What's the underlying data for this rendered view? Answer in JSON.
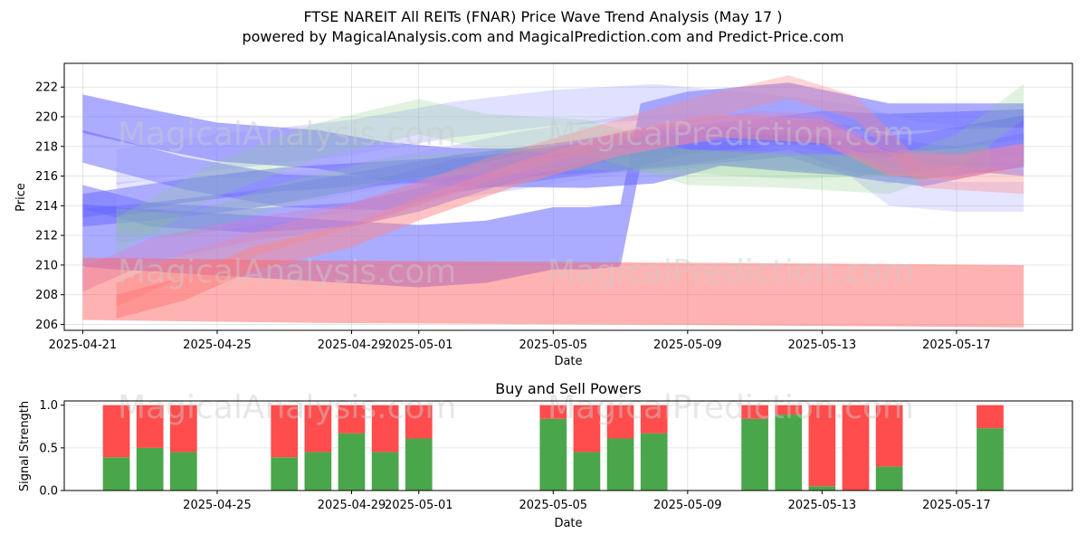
{
  "title": "FTSE NAREIT All REITs (FNAR) Price Wave Trend Analysis (May 17 )",
  "subtitle": "powered by MagicalAnalysis.com and MagicalPrediction.com and Predict-Price.com",
  "watermarks": [
    "MagicalAnalysis.com",
    "MagicalPrediction.com"
  ],
  "colors": {
    "blue_band": "#6666ff",
    "red_band": "#ff6666",
    "green_band": "#66bb66",
    "buy": "#4aa64a",
    "sell": "#ff4c4c"
  },
  "chart_data": [
    {
      "type": "line",
      "subtype": "wave-bands",
      "xlabel": "Date",
      "ylabel": "Price",
      "xlim": [
        "2025-04-21",
        "2025-05-20"
      ],
      "ylim": [
        205.6,
        223.6
      ],
      "x_ticks": [
        "2025-04-21",
        "2025-04-25",
        "2025-04-29",
        "2025-05-01",
        "2025-05-05",
        "2025-05-09",
        "2025-05-13",
        "2025-05-17"
      ],
      "y_ticks": [
        206,
        208,
        210,
        212,
        214,
        216,
        218,
        220,
        222
      ],
      "grid": true,
      "series": [
        {
          "color": "#6666ff",
          "opacity": 0.55,
          "width": 2.6,
          "points": [
            [
              "2025-04-21",
              220.2
            ],
            [
              "2025-04-23",
              219.2
            ],
            [
              "2025-04-25",
              218.3
            ],
            [
              "2025-04-28",
              217.8
            ],
            [
              "2025-04-30",
              217.0
            ],
            [
              "2025-05-02",
              216.6
            ],
            [
              "2025-05-06",
              216.5
            ],
            [
              "2025-05-08",
              216.8
            ],
            [
              "2025-05-10",
              218.0
            ],
            [
              "2025-05-12",
              217.6
            ],
            [
              "2025-05-14",
              217.3
            ],
            [
              "2025-05-16",
              217.6
            ],
            [
              "2025-05-19",
              218.8
            ]
          ]
        },
        {
          "color": "#6666ff",
          "opacity": 0.55,
          "width": 4.2,
          "points": [
            [
              "2025-04-21",
              212.0
            ],
            [
              "2025-04-22",
              211.8
            ],
            [
              "2025-04-25",
              211.4
            ],
            [
              "2025-04-28",
              211.0
            ],
            [
              "2025-05-01",
              210.6
            ],
            [
              "2025-05-03",
              210.9
            ],
            [
              "2025-05-05",
              211.8
            ],
            [
              "2025-05-06",
              211.8
            ],
            [
              "2025-05-07",
              212.0
            ],
            [
              "2025-05-07.6",
              218.8
            ],
            [
              "2025-05-09",
              219.6
            ],
            [
              "2025-05-12",
              220.2
            ],
            [
              "2025-05-15",
              218.8
            ],
            [
              "2025-05-17",
              218.8
            ],
            [
              "2025-05-19",
              218.8
            ]
          ]
        },
        {
          "color": "#6666ff",
          "opacity": 0.5,
          "width": 2.2,
          "points": [
            [
              "2025-04-21",
              218.0
            ],
            [
              "2025-04-24",
              216.2
            ],
            [
              "2025-04-27",
              215.0
            ],
            [
              "2025-04-30",
              214.8
            ],
            [
              "2025-05-02",
              216.0
            ],
            [
              "2025-05-06",
              217.2
            ],
            [
              "2025-05-09",
              217.8
            ],
            [
              "2025-05-12",
              218.4
            ],
            [
              "2025-05-14",
              217.0
            ],
            [
              "2025-05-16",
              216.4
            ],
            [
              "2025-05-19",
              217.8
            ]
          ]
        },
        {
          "color": "#6666ff",
          "opacity": 0.5,
          "width": 1.6,
          "points": [
            [
              "2025-04-21",
              214.0
            ],
            [
              "2025-04-24",
              215.0
            ],
            [
              "2025-04-27",
              215.8
            ],
            [
              "2025-04-30",
              216.2
            ],
            [
              "2025-05-03",
              216.6
            ],
            [
              "2025-05-06",
              217.0
            ],
            [
              "2025-05-09",
              217.6
            ],
            [
              "2025-05-12",
              218.6
            ],
            [
              "2025-05-14",
              217.0
            ],
            [
              "2025-05-16",
              216.6
            ],
            [
              "2025-05-19",
              217.4
            ]
          ]
        },
        {
          "color": "#6666ff",
          "opacity": 0.5,
          "width": 1.2,
          "points": [
            [
              "2025-04-21",
              213.2
            ],
            [
              "2025-04-23",
              213.6
            ],
            [
              "2025-04-26",
              214.4
            ],
            [
              "2025-04-29",
              215.6
            ],
            [
              "2025-05-02",
              216.8
            ],
            [
              "2025-05-05",
              217.6
            ],
            [
              "2025-05-08",
              218.6
            ],
            [
              "2025-05-11",
              219.2
            ],
            [
              "2025-05-13",
              219.8
            ],
            [
              "2025-05-15",
              219.6
            ],
            [
              "2025-05-19",
              219.9
            ]
          ]
        },
        {
          "color": "#6666ff",
          "opacity": 0.5,
          "width": 1.6,
          "points": [
            [
              "2025-04-21",
              214.6
            ],
            [
              "2025-04-23",
              213.4
            ],
            [
              "2025-04-26",
              213.0
            ],
            [
              "2025-04-29",
              213.4
            ],
            [
              "2025-05-01",
              214.4
            ],
            [
              "2025-05-04",
              216.6
            ],
            [
              "2025-05-07",
              218.0
            ],
            [
              "2025-05-10",
              218.6
            ],
            [
              "2025-05-13",
              219.0
            ],
            [
              "2025-05-16",
              217.4
            ],
            [
              "2025-05-19",
              216.8
            ]
          ]
        },
        {
          "color": "#9999ff",
          "opacity": 0.3,
          "width": 2.4,
          "points": [
            [
              "2025-04-22",
              216.6
            ],
            [
              "2025-04-25",
              217.6
            ],
            [
              "2025-04-29",
              218.6
            ],
            [
              "2025-05-02",
              219.8
            ],
            [
              "2025-05-05",
              220.6
            ],
            [
              "2025-05-08",
              221.0
            ],
            [
              "2025-05-11",
              220.4
            ],
            [
              "2025-05-14",
              219.6
            ],
            [
              "2025-05-16",
              218.4
            ],
            [
              "2025-05-19",
              218.0
            ]
          ]
        },
        {
          "color": "#9999ff",
          "opacity": 0.25,
          "width": 2.0,
          "points": [
            [
              "2025-04-22",
              214.6
            ],
            [
              "2025-04-25",
              215.0
            ],
            [
              "2025-04-28",
              215.4
            ],
            [
              "2025-05-01",
              216.6
            ],
            [
              "2025-05-04",
              218.0
            ],
            [
              "2025-05-07",
              219.0
            ],
            [
              "2025-05-10",
              219.4
            ],
            [
              "2025-05-13",
              218.4
            ],
            [
              "2025-05-15",
              215.0
            ],
            [
              "2025-05-17",
              214.6
            ],
            [
              "2025-05-19",
              214.6
            ]
          ]
        },
        {
          "color": "#9999ff",
          "opacity": 0.3,
          "width": 1.8,
          "points": [
            [
              "2025-04-22",
              212.4
            ],
            [
              "2025-04-25",
              213.2
            ],
            [
              "2025-04-28",
              214.2
            ],
            [
              "2025-05-01",
              215.0
            ],
            [
              "2025-05-04",
              216.0
            ],
            [
              "2025-05-07",
              217.0
            ],
            [
              "2025-05-10",
              217.6
            ],
            [
              "2025-05-13",
              217.2
            ],
            [
              "2025-05-15",
              216.4
            ],
            [
              "2025-05-19",
              217.6
            ]
          ]
        },
        {
          "color": "#88cc88",
          "opacity": 0.25,
          "width": 2.4,
          "points": [
            [
              "2025-04-22",
              212.0
            ],
            [
              "2025-04-25",
              215.8
            ],
            [
              "2025-04-28",
              218.4
            ],
            [
              "2025-05-01",
              220.0
            ],
            [
              "2025-05-03",
              219.0
            ],
            [
              "2025-05-06",
              218.6
            ],
            [
              "2025-05-09",
              216.6
            ],
            [
              "2025-05-12",
              216.4
            ],
            [
              "2025-05-15",
              216.0
            ],
            [
              "2025-05-17",
              217.6
            ],
            [
              "2025-05-19",
              221.0
            ]
          ]
        },
        {
          "color": "#88cc88",
          "opacity": 0.25,
          "width": 1.6,
          "points": [
            [
              "2025-04-22",
              213.0
            ],
            [
              "2025-04-24",
              212.6
            ],
            [
              "2025-04-27",
              214.8
            ],
            [
              "2025-04-30",
              216.4
            ],
            [
              "2025-05-03",
              217.0
            ],
            [
              "2025-05-06",
              217.2
            ],
            [
              "2025-05-09",
              217.0
            ],
            [
              "2025-05-12",
              216.6
            ],
            [
              "2025-05-15",
              216.8
            ],
            [
              "2025-05-18",
              217.2
            ]
          ]
        },
        {
          "color": "#ff8888",
          "opacity": 0.5,
          "width": 1.6,
          "points": [
            [
              "2025-04-22",
              207.2
            ],
            [
              "2025-04-24",
              208.4
            ],
            [
              "2025-04-26",
              210.4
            ],
            [
              "2025-04-29",
              212.0
            ],
            [
              "2025-05-01",
              213.8
            ],
            [
              "2025-05-04",
              216.2
            ],
            [
              "2025-05-07",
              218.2
            ],
            [
              "2025-05-10",
              219.4
            ],
            [
              "2025-05-13",
              219.0
            ],
            [
              "2025-05-15",
              216.8
            ],
            [
              "2025-05-17",
              216.6
            ],
            [
              "2025-05-19",
              217.4
            ]
          ]
        },
        {
          "color": "#ff8888",
          "opacity": 0.35,
          "width": 1.6,
          "points": [
            [
              "2025-04-22",
              208.0
            ],
            [
              "2025-04-24",
              210.0
            ],
            [
              "2025-04-27",
              212.0
            ],
            [
              "2025-04-30",
              214.0
            ],
            [
              "2025-05-03",
              216.4
            ],
            [
              "2025-05-06",
              218.4
            ],
            [
              "2025-05-09",
              220.4
            ],
            [
              "2025-05-12",
              222.0
            ],
            [
              "2025-05-14",
              220.6
            ],
            [
              "2025-05-16",
              216.0
            ],
            [
              "2025-05-19",
              215.6
            ]
          ]
        },
        {
          "color": "#cc88cc",
          "opacity": 0.45,
          "width": 1.6,
          "points": [
            [
              "2025-04-21",
              209.0
            ],
            [
              "2025-04-23",
              211.0
            ],
            [
              "2025-04-26",
              212.4
            ],
            [
              "2025-04-29",
              213.4
            ],
            [
              "2025-05-02",
              215.6
            ],
            [
              "2025-05-05",
              217.2
            ],
            [
              "2025-05-08",
              218.6
            ],
            [
              "2025-05-11",
              219.6
            ],
            [
              "2025-05-13",
              219.4
            ],
            [
              "2025-05-15",
              217.0
            ],
            [
              "2025-05-17",
              216.8
            ],
            [
              "2025-05-19",
              217.4
            ]
          ]
        },
        {
          "color": "#ff6666",
          "opacity": 0.5,
          "width": 4.2,
          "points": [
            [
              "2025-04-21",
              208.4
            ],
            [
              "2025-04-28",
              208.2
            ],
            [
              "2025-05-06",
              208.1
            ],
            [
              "2025-05-13",
              208.0
            ],
            [
              "2025-05-19",
              207.9
            ]
          ]
        }
      ]
    },
    {
      "type": "bar",
      "subtype": "stacked",
      "title": "Buy and Sell Powers",
      "xlabel": "Date",
      "ylabel": "Signal Strength",
      "ylim": [
        0,
        1.05
      ],
      "y_ticks": [
        0.0,
        0.5,
        1.0
      ],
      "x_ticks": [
        "2025-04-25",
        "2025-04-29",
        "2025-05-01",
        "2025-05-05",
        "2025-05-09",
        "2025-05-13",
        "2025-05-17"
      ],
      "grid": true,
      "categories": [
        "2025-04-22",
        "2025-04-23",
        "2025-04-24",
        "2025-04-27",
        "2025-04-28",
        "2025-04-29",
        "2025-04-30",
        "2025-05-01",
        "2025-05-05",
        "2025-05-06",
        "2025-05-07",
        "2025-05-08",
        "2025-05-11",
        "2025-05-12",
        "2025-05-13",
        "2025-05-14",
        "2025-05-15",
        "2025-05-18"
      ],
      "series": [
        {
          "values": [
            0.39,
            0.5,
            0.45,
            0.39,
            0.45,
            0.67,
            0.45,
            0.61,
            0.84,
            0.45,
            0.61,
            0.67,
            0.84,
            0.89,
            0.05,
            0.0,
            0.28,
            0.73
          ]
        },
        {
          "values": [
            0.61,
            0.5,
            0.55,
            0.61,
            0.55,
            0.33,
            0.55,
            0.39,
            0.16,
            0.55,
            0.39,
            0.33,
            0.16,
            0.11,
            0.95,
            1.0,
            0.72,
            0.27
          ]
        }
      ]
    }
  ]
}
